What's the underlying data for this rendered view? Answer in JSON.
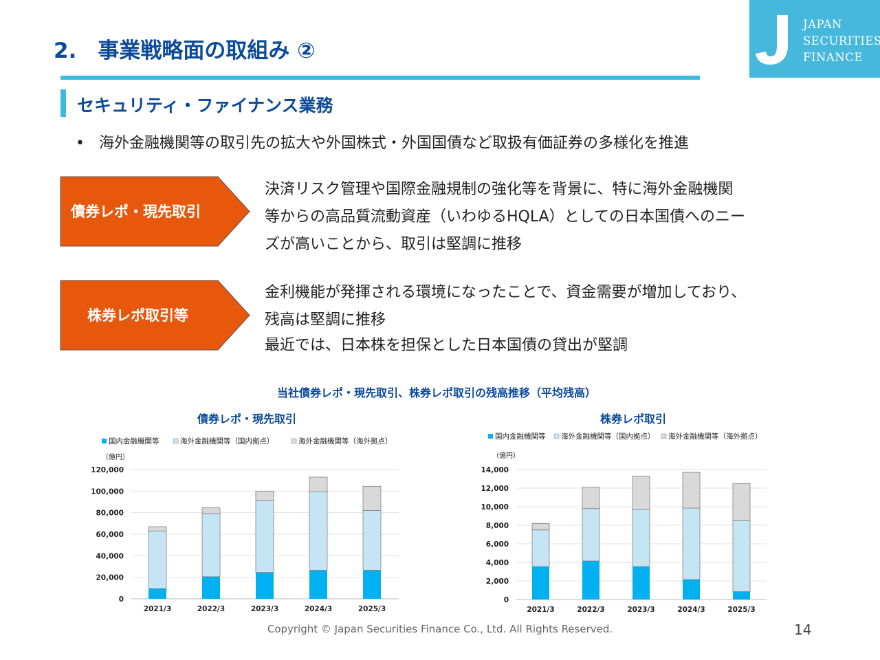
{
  "header": {
    "title": "2.　事業戦略面の取組み ②",
    "logo": {
      "line1": "JAPAN",
      "line2": "SECURITIES",
      "line3": "FINANCE"
    }
  },
  "section": {
    "title": "セキュリティ・ファイナンス業務",
    "bullet": "海外金融機関等の取引先の拡大や外国株式・外国国債など取扱有価証券の多様化を推進"
  },
  "items": [
    {
      "label": "債券レポ・現先取引",
      "lines": [
        "決済リスク管理や国際金融規制の強化等を背景に、特に海外金融機関",
        "等からの高品質流動資産（いわゆるHQLA）としての日本国債へのニー",
        "ズが高いことから、取引は堅調に推移"
      ]
    },
    {
      "label": "株券レポ取引等",
      "lines": [
        "金利機能が発揮される環境になったことで、資金需要が増加しており、",
        "残高は堅調に推移",
        "最近では、日本株を担保とした日本国債の貸出が堅調"
      ]
    }
  ],
  "charts_title": "当社債券レポ・現先取引、株券レポ取引の残高推移（平均残高）",
  "chart_data": [
    {
      "type": "bar",
      "stacked": true,
      "title": "債券レポ・現先取引",
      "ylabel": "（億円）",
      "categories": [
        "2021/3",
        "2022/3",
        "2023/3",
        "2024/3",
        "2025/3"
      ],
      "ylim": [
        0,
        120000
      ],
      "yticks": [
        "0",
        "20,000",
        "40,000",
        "60,000",
        "80,000",
        "100,000",
        "120,000"
      ],
      "ytick_values": [
        0,
        20000,
        40000,
        60000,
        80000,
        100000,
        120000
      ],
      "grid": true,
      "legend_position": "top",
      "series": [
        {
          "name": "国内金融機関等",
          "color": "#00b0f0",
          "values": [
            9500,
            20500,
            24500,
            26500,
            26500
          ]
        },
        {
          "name": "海外金融機関等（国内拠点）",
          "color": "#c5e5f5",
          "values": [
            53500,
            58500,
            66500,
            73000,
            55500
          ]
        },
        {
          "name": "海外金融機関等（海外拠点）",
          "color": "#d9d9d9",
          "values": [
            4000,
            5500,
            9000,
            13500,
            22500
          ]
        }
      ]
    },
    {
      "type": "bar",
      "stacked": true,
      "title": "株券レポ取引",
      "ylabel": "（億円）",
      "categories": [
        "2021/3",
        "2022/3",
        "2023/3",
        "2024/3",
        "2025/3"
      ],
      "ylim": [
        0,
        14000
      ],
      "yticks": [
        "0",
        "2,000",
        "4,000",
        "6,000",
        "8,000",
        "10,000",
        "12,000",
        "14,000"
      ],
      "ytick_values": [
        0,
        2000,
        4000,
        6000,
        8000,
        10000,
        12000,
        14000
      ],
      "grid": true,
      "legend_position": "top",
      "series": [
        {
          "name": "国内金融機関等",
          "color": "#00b0f0",
          "values": [
            3550,
            4150,
            3550,
            2150,
            850
          ]
        },
        {
          "name": "海外金融機関等（国内拠点）",
          "color": "#c5e5f5",
          "values": [
            3950,
            5650,
            6150,
            7700,
            7650
          ]
        },
        {
          "name": "海外金融機関等（海外拠点）",
          "color": "#d9d9d9",
          "values": [
            700,
            2300,
            3600,
            3850,
            4000
          ]
        }
      ]
    }
  ],
  "footer": {
    "copyright": "Copyright © Japan Securities Finance Co., Ltd. All Rights Reserved.",
    "page_number": "14"
  },
  "colors": {
    "title_blue": "#0b4a9a",
    "accent_cyan": "#3fb8dd",
    "arrow_orange": "#e8580c"
  }
}
